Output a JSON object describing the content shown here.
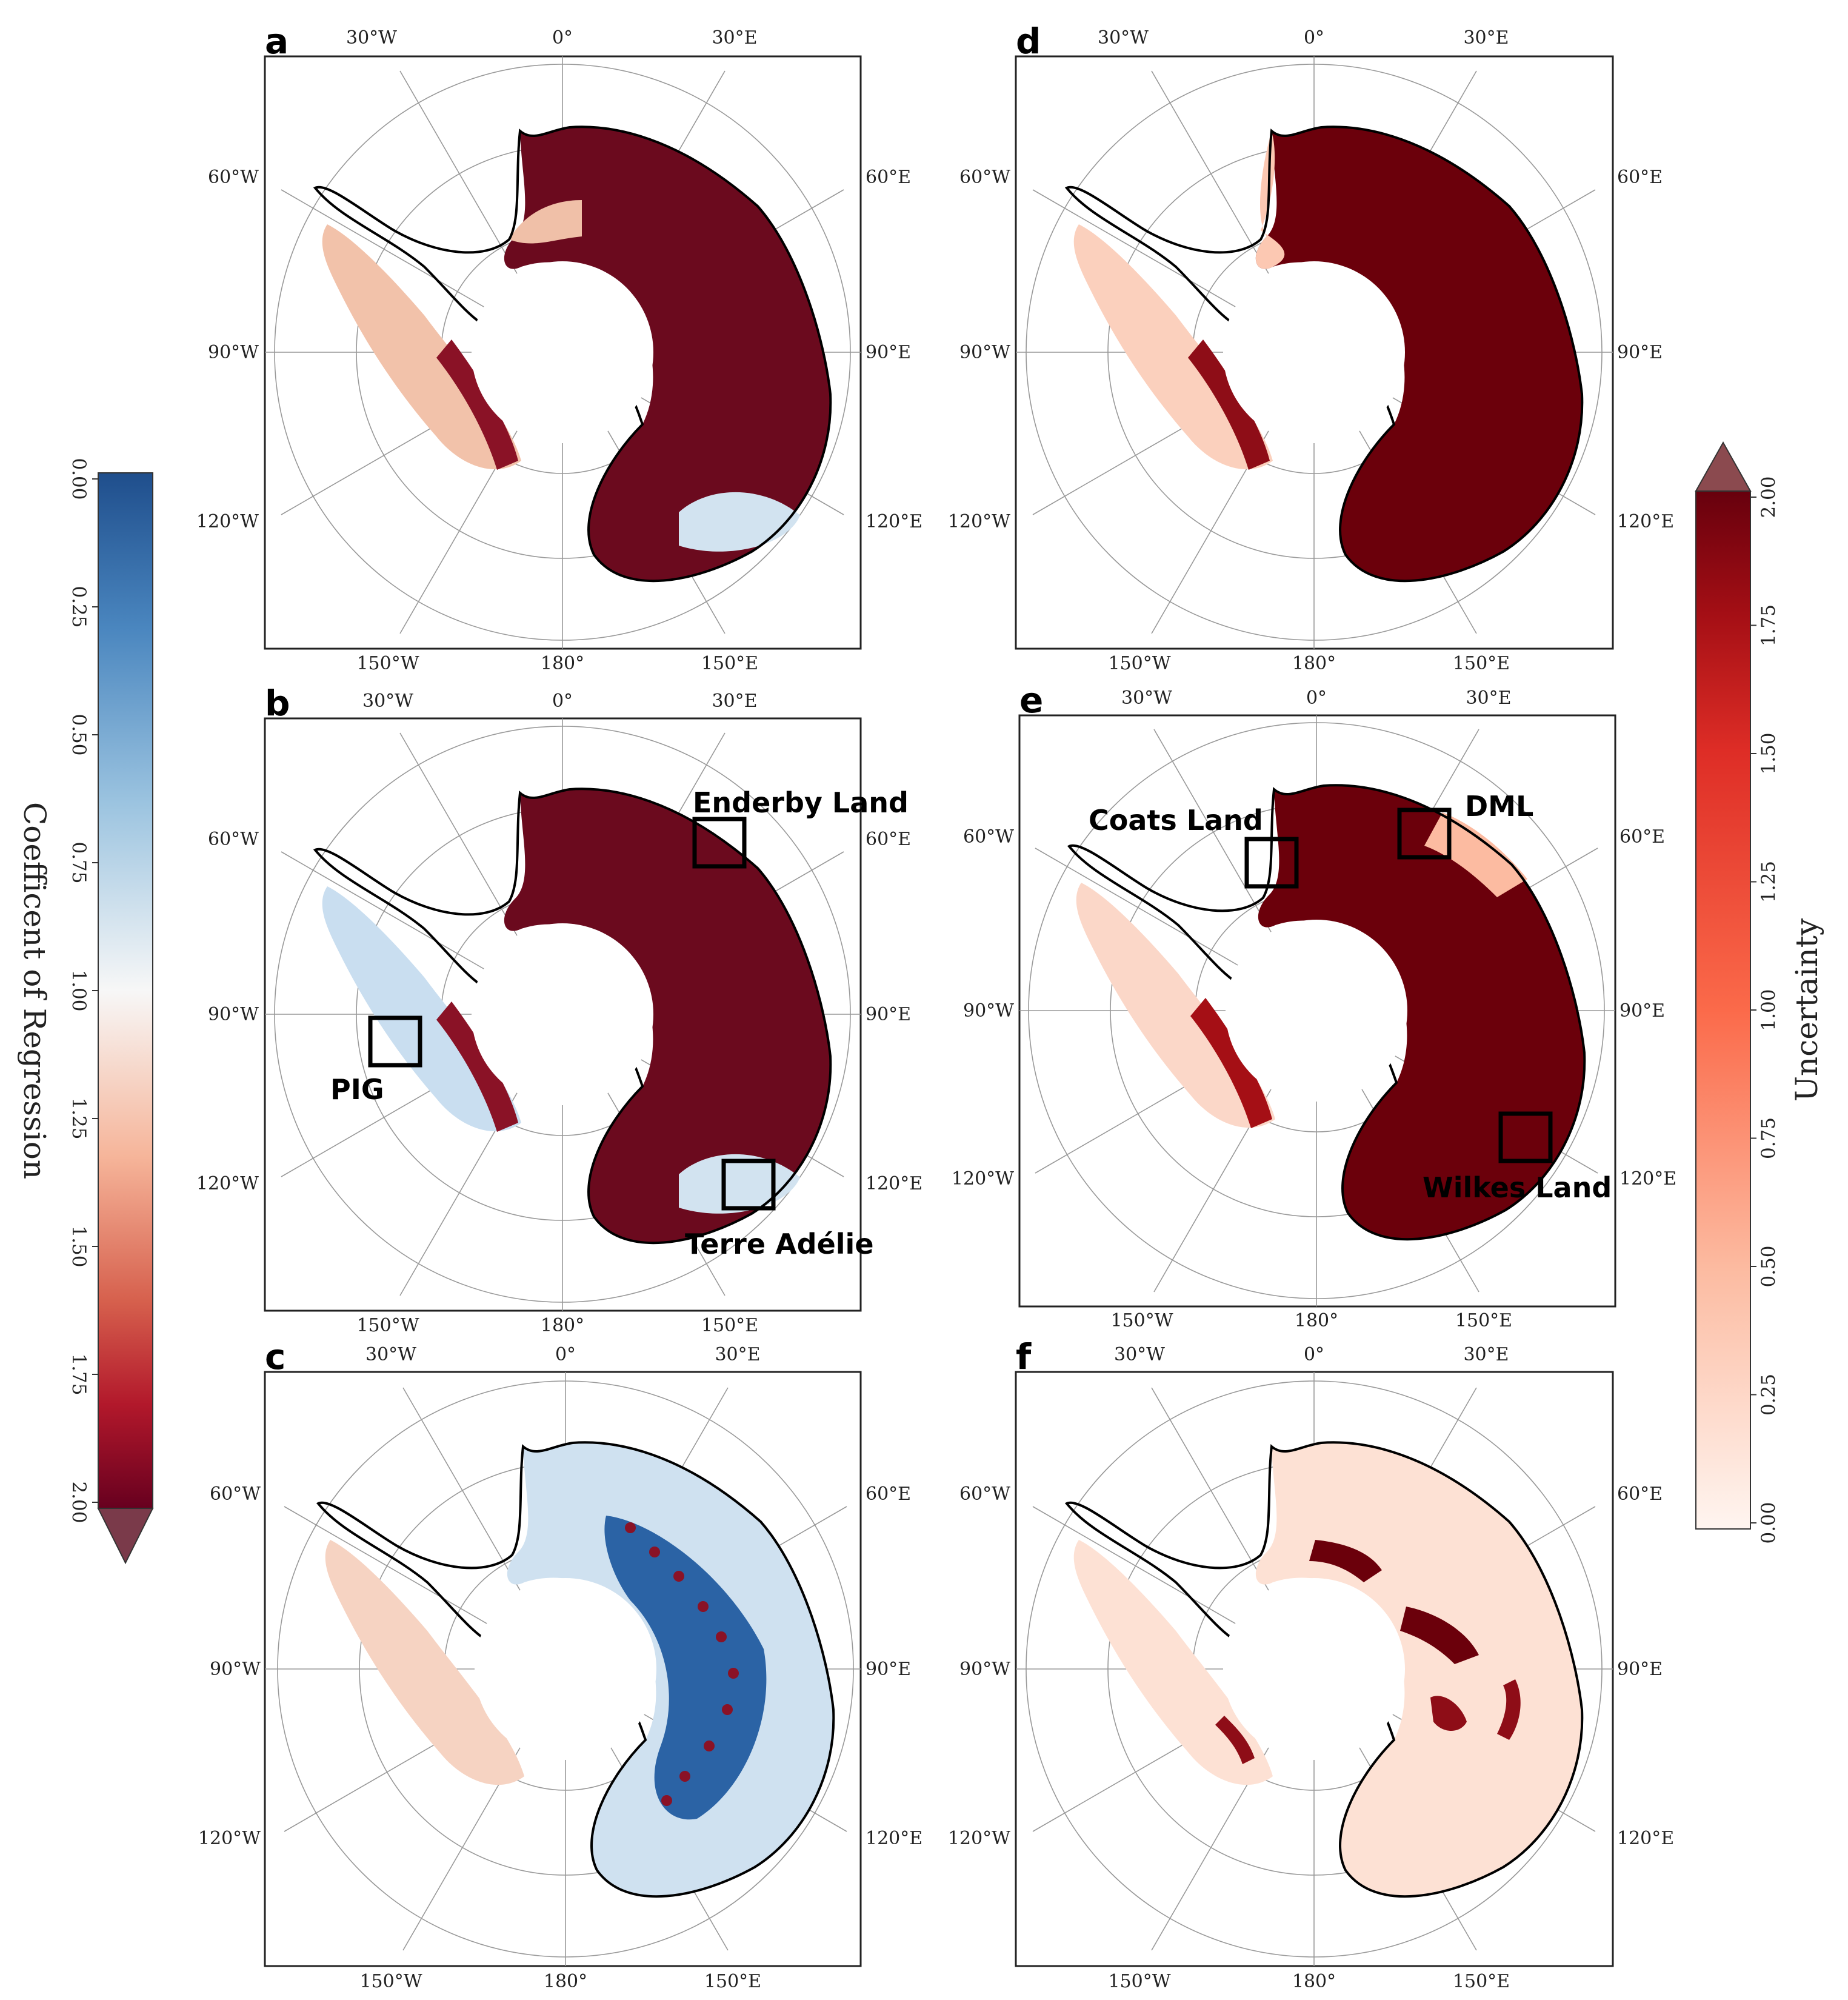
{
  "panels": [
    {
      "id": "a",
      "label": "a",
      "colormap": "regression",
      "annotations": []
    },
    {
      "id": "b",
      "label": "b",
      "colormap": "regression",
      "annotations": [
        {
          "name": "enderby-land",
          "text": "Enderby Land"
        },
        {
          "name": "pig",
          "text": "PIG"
        },
        {
          "name": "terre-adelie",
          "text": "Terre Adélie"
        }
      ]
    },
    {
      "id": "c",
      "label": "c",
      "colormap": "regression",
      "annotations": []
    },
    {
      "id": "d",
      "label": "d",
      "colormap": "uncertainty",
      "annotations": []
    },
    {
      "id": "e",
      "label": "e",
      "colormap": "uncertainty",
      "annotations": [
        {
          "name": "coats-land",
          "text": "Coats Land"
        },
        {
          "name": "dml",
          "text": "DML"
        },
        {
          "name": "wilkes-land",
          "text": "Wilkes Land"
        }
      ]
    },
    {
      "id": "f",
      "label": "f",
      "colormap": "uncertainty",
      "annotations": []
    }
  ],
  "longitude_labels": {
    "top": [
      "30°W",
      "0°",
      "30°E"
    ],
    "left": [
      "60°W",
      "90°W",
      "120°W"
    ],
    "right": [
      "60°E",
      "90°E",
      "120°E"
    ],
    "bottom": [
      "150°W",
      "180°",
      "150°E"
    ]
  },
  "colorbar_left": {
    "title": "Coefficent of Regression",
    "ticks": [
      "0.00",
      "0.25",
      "0.50",
      "0.75",
      "1.00",
      "1.25",
      "1.50",
      "1.75",
      "2.00"
    ],
    "range": [
      0,
      2
    ],
    "extend": "max",
    "colors": [
      "#1f4e8c",
      "#4a86bf",
      "#9cc4e0",
      "#f7f7f7",
      "#f6b59a",
      "#d6604d",
      "#b2182b",
      "#67001f"
    ],
    "extend_color": "#7a3a4a"
  },
  "colorbar_right": {
    "title": "Uncertainty",
    "ticks": [
      "0.00",
      "0.25",
      "0.50",
      "0.75",
      "1.00",
      "1.25",
      "1.50",
      "1.75",
      "2.00"
    ],
    "range": [
      0,
      2
    ],
    "extend": "max",
    "colors": [
      "#fff5f0",
      "#fcbba1",
      "#fb6a4a",
      "#de2d26",
      "#a50f15",
      "#67000d"
    ],
    "extend_color": "#8b4a4f"
  },
  "colors": {
    "regression_high": "#6b0a1e",
    "regression_low": "#2b63a5",
    "regression_mid": "#f3f3f3",
    "uncertainty_high": "#6b000b",
    "uncertainty_low": "#fde6db"
  }
}
